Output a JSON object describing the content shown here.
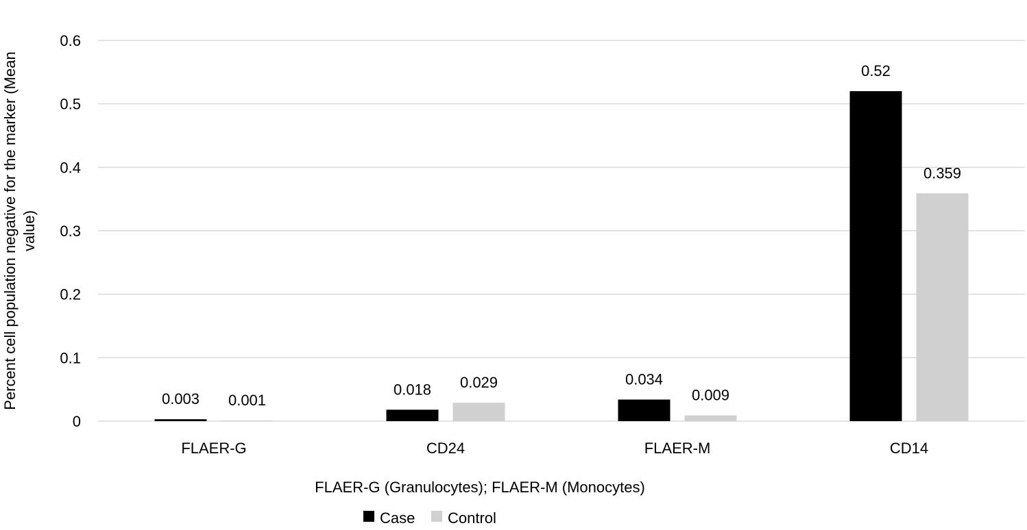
{
  "chart_data": {
    "type": "bar",
    "categories": [
      "FLAER-G",
      "CD24",
      "FLAER-M",
      "CD14"
    ],
    "series": [
      {
        "name": "Case",
        "values": [
          0.003,
          0.018,
          0.034,
          0.52
        ],
        "labels": [
          "0.003",
          "0.018",
          "0.034",
          "0.52"
        ],
        "color": "#000000"
      },
      {
        "name": "Control",
        "values": [
          0.001,
          0.029,
          0.009,
          0.359
        ],
        "labels": [
          "0.001",
          "0.029",
          "0.009",
          "0.359"
        ],
        "color": "#d0d0d0"
      }
    ],
    "ylim": [
      0,
      0.6
    ],
    "yticks": [
      "0",
      "0.1",
      "0.2",
      "0.3",
      "0.4",
      "0.5",
      "0.6"
    ],
    "ylabel_lines": [
      "Percent cell population negative for the marker (Mean",
      "value)"
    ],
    "xlabel": "FLAER-G (Granulocytes); FLAER-M (Monocytes)",
    "grid": true,
    "legend_position": "bottom"
  }
}
